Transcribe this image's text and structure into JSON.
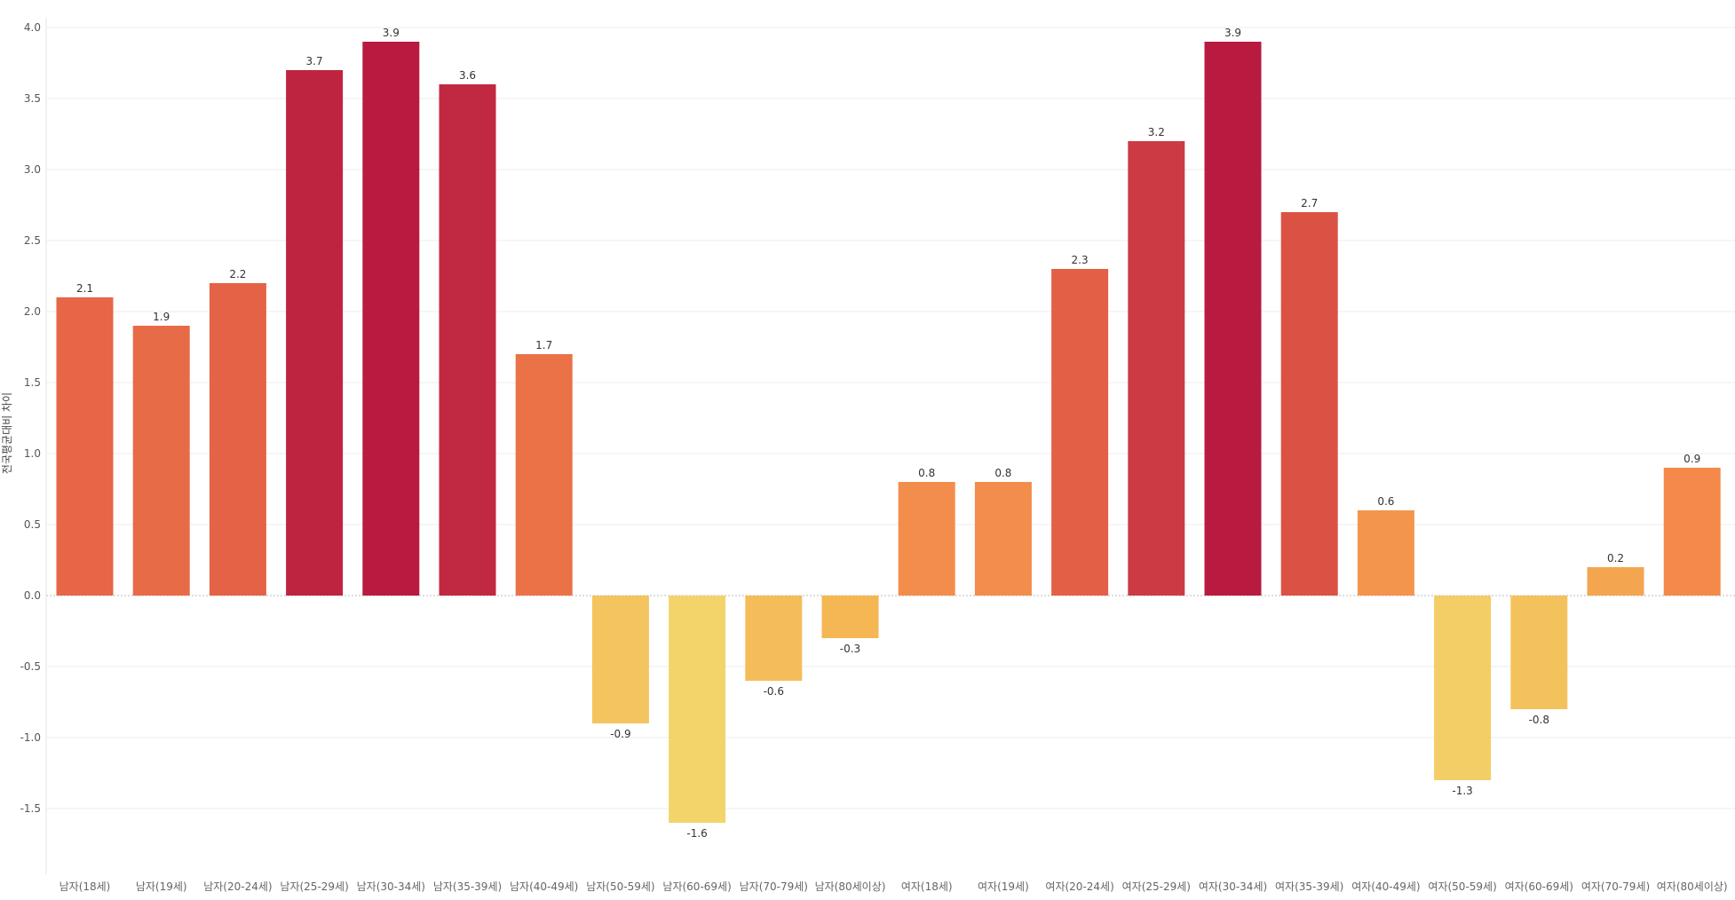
{
  "chart_data": {
    "type": "bar",
    "title": "",
    "xlabel": "",
    "ylabel": "전국평균대비 차이",
    "ylim": [
      -2.0,
      4.0
    ],
    "yticks": [
      4.0,
      3.5,
      3.0,
      2.5,
      2.0,
      1.5,
      1.0,
      0.5,
      0.0,
      -0.5,
      -1.0,
      -1.5
    ],
    "grid": true,
    "categories": [
      "남자(18세)",
      "남자(19세)",
      "남자(20-24세)",
      "남자(25-29세)",
      "남자(30-34세)",
      "남자(35-39세)",
      "남자(40-49세)",
      "남자(50-59세)",
      "남자(60-69세)",
      "남자(70-79세)",
      "남자(80세이상)",
      "여자(18세)",
      "여자(19세)",
      "여자(20-24세)",
      "여자(25-29세)",
      "여자(30-34세)",
      "여자(35-39세)",
      "여자(40-49세)",
      "여자(50-59세)",
      "여자(60-69세)",
      "여자(70-79세)",
      "여자(80세이상)"
    ],
    "values": [
      2.1,
      1.9,
      2.2,
      3.7,
      3.9,
      3.6,
      1.7,
      -0.9,
      -1.6,
      -0.6,
      -0.3,
      0.8,
      0.8,
      2.3,
      3.2,
      3.9,
      2.7,
      0.6,
      -1.3,
      -0.8,
      0.2,
      0.9
    ],
    "data_labels": [
      "2.1",
      "1.9",
      "2.2",
      "3.7",
      "3.9",
      "3.6",
      "1.7",
      "-0.9",
      "-1.6",
      "-0.6",
      "-0.3",
      "0.8",
      "0.8",
      "2.3",
      "3.2",
      "3.9",
      "2.7",
      "0.6",
      "-1.3",
      "-0.8",
      "0.2",
      "0.9"
    ],
    "color_scale": [
      "#f2d46a",
      "#f5b552",
      "#f28048",
      "#e05a46",
      "#b81b3f"
    ]
  }
}
